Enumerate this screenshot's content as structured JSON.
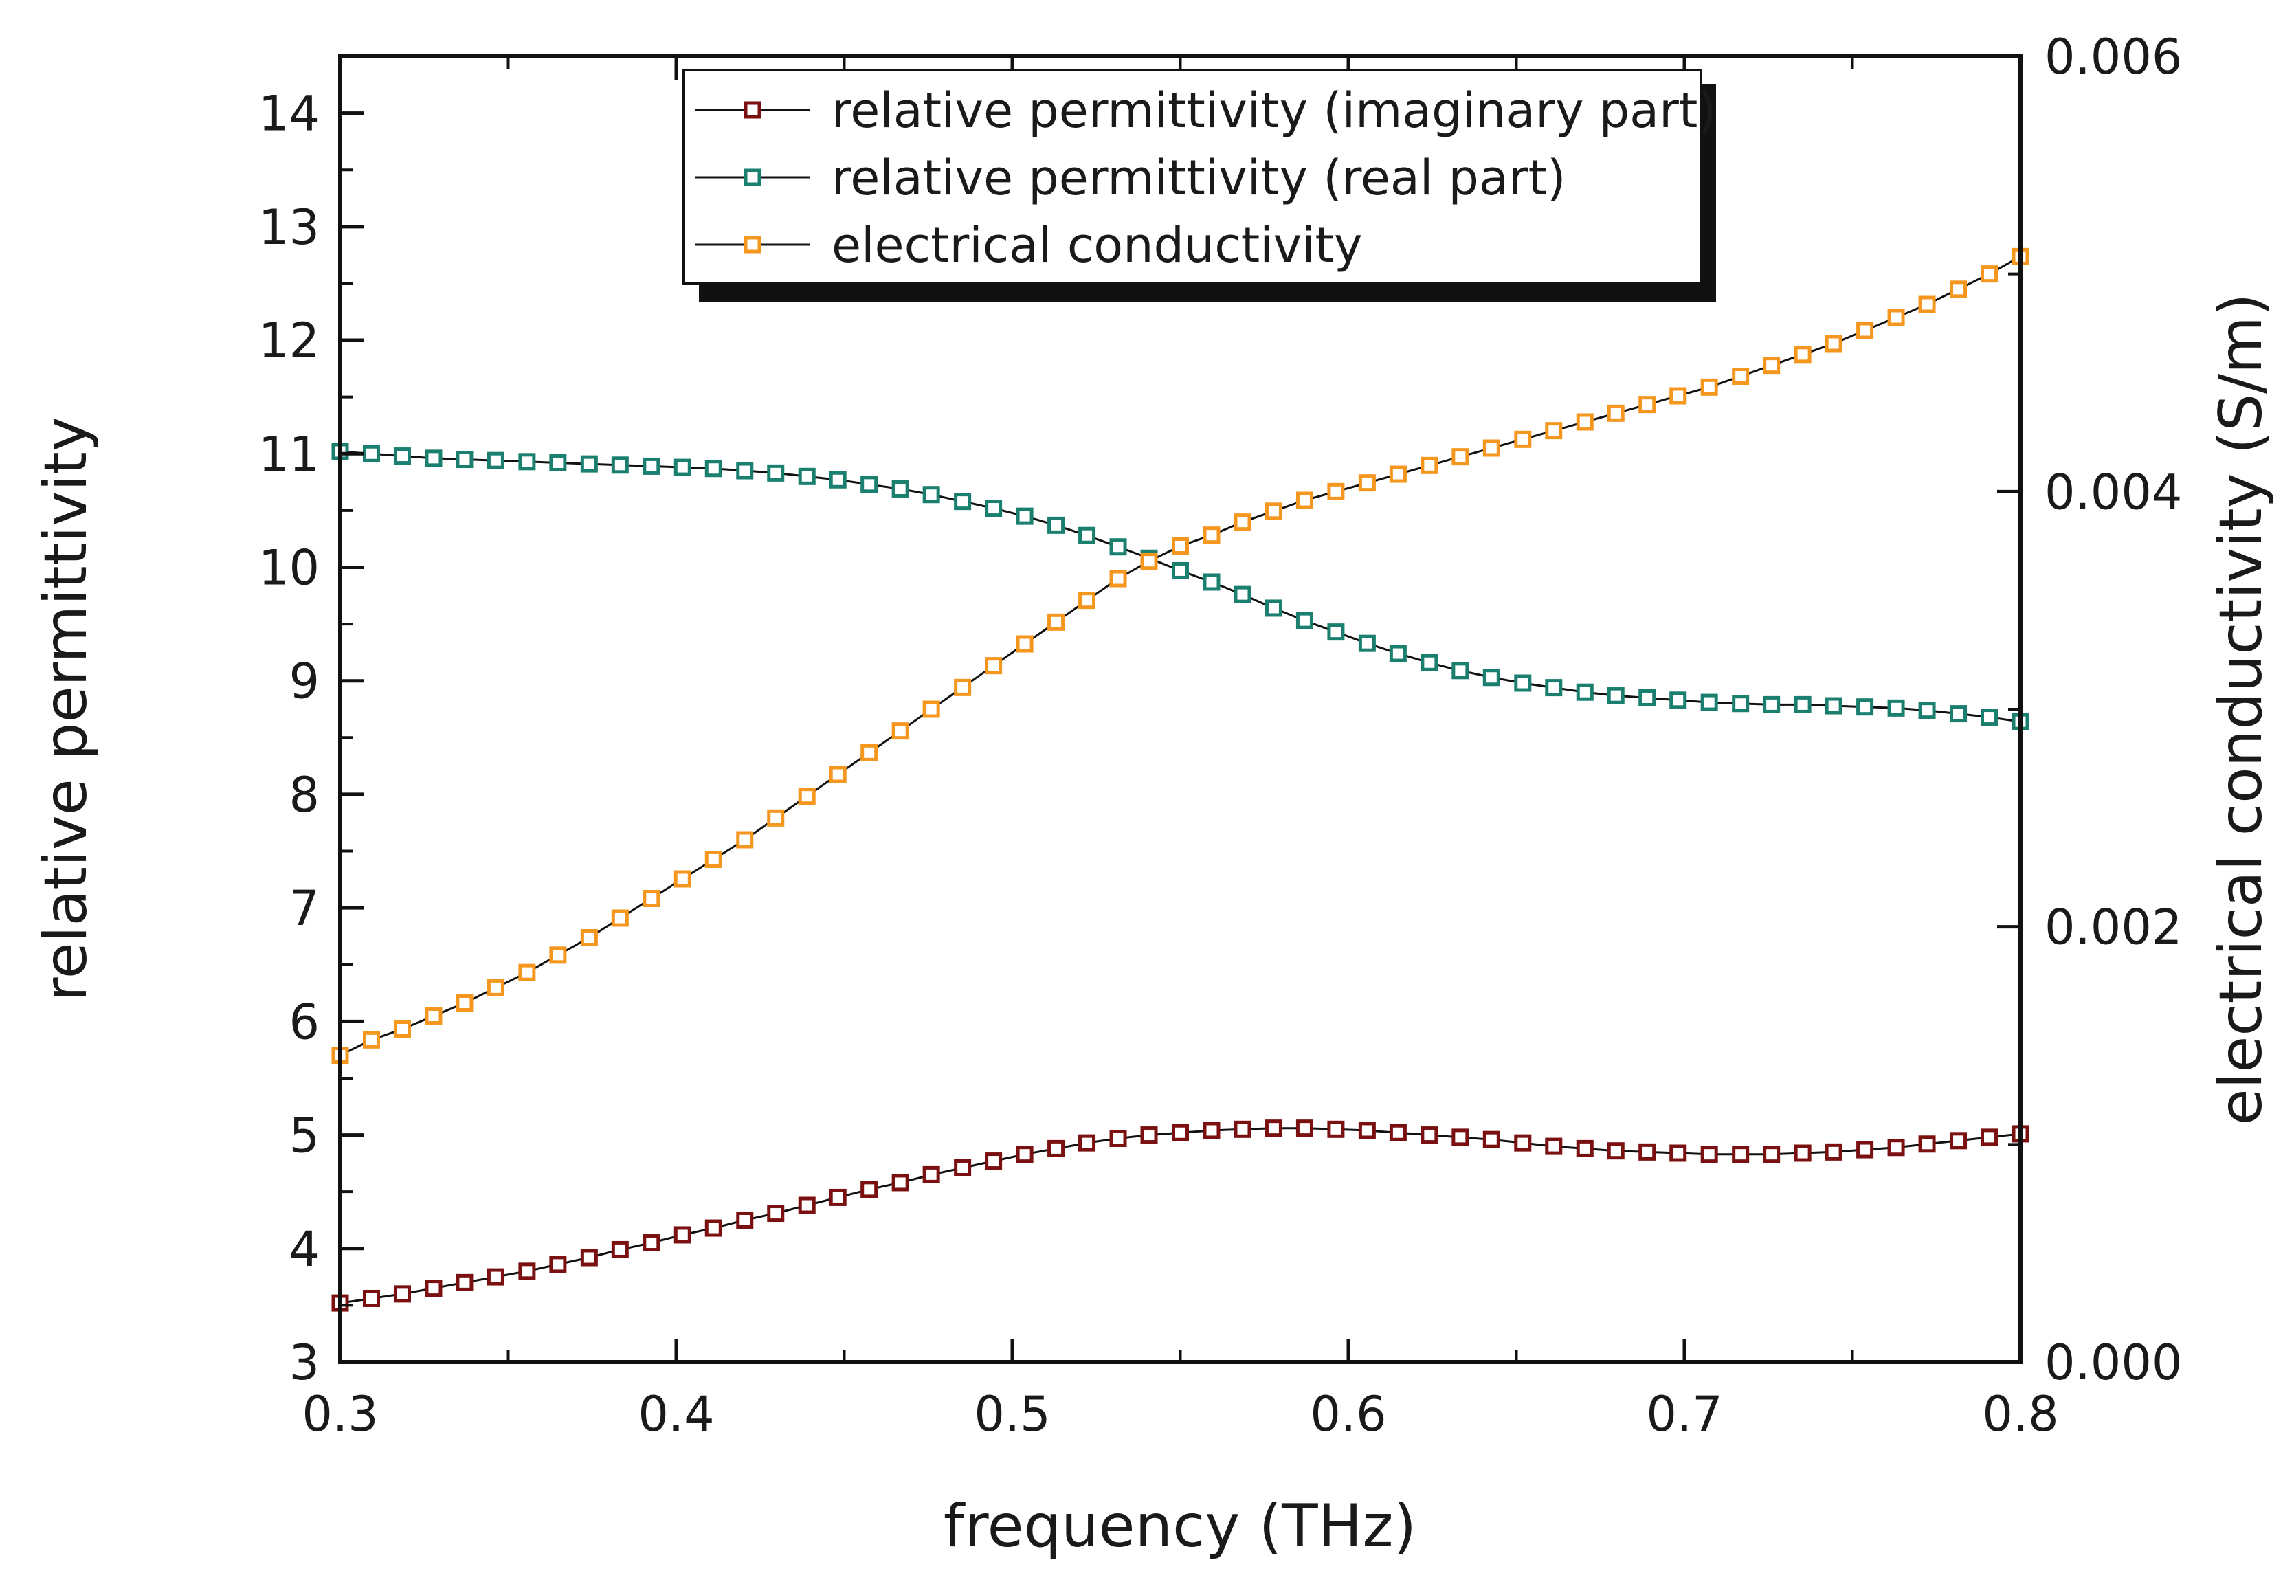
{
  "chart_data": {
    "type": "line",
    "title": "",
    "xlabel": "frequency (THz)",
    "ylabel": "relative permittivity",
    "y2label": "electrical conductivity (S/m)",
    "xlim": [
      0.3,
      0.8
    ],
    "ylim": [
      3,
      14.5
    ],
    "y2lim": [
      0,
      0.006
    ],
    "x_ticks": [
      0.3,
      0.4,
      0.5,
      0.6,
      0.7,
      0.8
    ],
    "x_tick_labels": [
      "0.3",
      "0.4",
      "0.5",
      "0.6",
      "0.7",
      "0.8"
    ],
    "y_ticks": [
      3,
      4,
      5,
      6,
      7,
      8,
      9,
      10,
      11,
      12,
      13,
      14
    ],
    "y_tick_labels": [
      "3",
      "4",
      "5",
      "6",
      "7",
      "8",
      "9",
      "10",
      "11",
      "12",
      "13",
      "14"
    ],
    "y2_ticks": [
      0,
      0.002,
      0.004,
      0.006
    ],
    "y2_tick_labels": [
      "0.000",
      "0.002",
      "0.004",
      "0.006"
    ],
    "grid": false,
    "legend_position": "top-center",
    "x": [
      0.3,
      0.3093,
      0.3185,
      0.3278,
      0.337,
      0.3463,
      0.3556,
      0.3648,
      0.3741,
      0.3833,
      0.3926,
      0.4019,
      0.4111,
      0.4204,
      0.4296,
      0.4389,
      0.4481,
      0.4574,
      0.4667,
      0.4759,
      0.4852,
      0.4944,
      0.5037,
      0.513,
      0.5222,
      0.5315,
      0.5407,
      0.55,
      0.5593,
      0.5685,
      0.5778,
      0.587,
      0.5963,
      0.6056,
      0.6148,
      0.6241,
      0.6333,
      0.6426,
      0.6519,
      0.6611,
      0.6704,
      0.6796,
      0.6889,
      0.6981,
      0.7074,
      0.7167,
      0.7259,
      0.7352,
      0.7444,
      0.7537,
      0.763,
      0.7722,
      0.7815,
      0.7907,
      0.8
    ],
    "series": [
      {
        "name": "relative permittivity (imaginary part)",
        "axis": "left",
        "color": "#7a1010",
        "values": [
          3.52,
          3.56,
          3.6,
          3.65,
          3.7,
          3.75,
          3.8,
          3.86,
          3.92,
          3.99,
          4.05,
          4.12,
          4.18,
          4.25,
          4.31,
          4.38,
          4.45,
          4.52,
          4.58,
          4.65,
          4.71,
          4.77,
          4.83,
          4.88,
          4.93,
          4.97,
          5.0,
          5.02,
          5.04,
          5.05,
          5.06,
          5.06,
          5.05,
          5.04,
          5.02,
          5.0,
          4.98,
          4.96,
          4.93,
          4.9,
          4.88,
          4.86,
          4.85,
          4.84,
          4.83,
          4.83,
          4.83,
          4.84,
          4.85,
          4.87,
          4.89,
          4.92,
          4.95,
          4.98,
          5.01
        ]
      },
      {
        "name": "relative permittivity (real part)",
        "axis": "left",
        "color": "#1a7f6e",
        "values": [
          11.02,
          11.0,
          10.98,
          10.96,
          10.95,
          10.94,
          10.93,
          10.92,
          10.91,
          10.9,
          10.89,
          10.88,
          10.87,
          10.85,
          10.83,
          10.8,
          10.77,
          10.73,
          10.69,
          10.64,
          10.58,
          10.52,
          10.45,
          10.37,
          10.28,
          10.18,
          10.08,
          9.97,
          9.87,
          9.76,
          9.64,
          9.53,
          9.43,
          9.33,
          9.24,
          9.16,
          9.09,
          9.03,
          8.98,
          8.94,
          8.9,
          8.87,
          8.85,
          8.83,
          8.81,
          8.8,
          8.79,
          8.79,
          8.78,
          8.77,
          8.76,
          8.74,
          8.71,
          8.68,
          8.64
        ]
      },
      {
        "name": "electrical conductivity",
        "axis": "right",
        "color": "#f5961e",
        "values": [
          0.00141,
          0.00148,
          0.00153,
          0.00159,
          0.00165,
          0.00172,
          0.00179,
          0.00187,
          0.00195,
          0.00204,
          0.00213,
          0.00222,
          0.00231,
          0.0024,
          0.0025,
          0.0026,
          0.0027,
          0.0028,
          0.0029,
          0.003,
          0.0031,
          0.0032,
          0.0033,
          0.0034,
          0.0035,
          0.0036,
          0.00368,
          0.00375,
          0.0038,
          0.00386,
          0.00391,
          0.00396,
          0.004,
          0.00404,
          0.00408,
          0.00412,
          0.00416,
          0.0042,
          0.00424,
          0.00428,
          0.00432,
          0.00436,
          0.0044,
          0.00444,
          0.00448,
          0.00453,
          0.00458,
          0.00463,
          0.00468,
          0.00474,
          0.0048,
          0.00486,
          0.00493,
          0.005,
          0.00508
        ]
      }
    ]
  }
}
